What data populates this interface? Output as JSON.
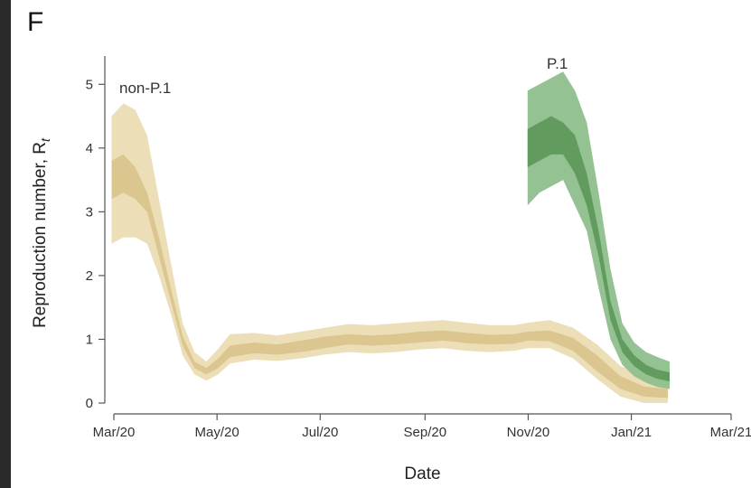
{
  "panel_letter": "F",
  "chart_data": {
    "type": "area",
    "title": "",
    "xlabel": "Date",
    "ylabel": "Reproduction number, R",
    "ylabel_sub": "t",
    "x_ticks": [
      "Mar/20",
      "May/20",
      "Jul/20",
      "Sep/20",
      "Nov/20",
      "Jan/21",
      "Mar/21"
    ],
    "ylim": [
      0,
      5.5
    ],
    "y_ticks": [
      0,
      1,
      2,
      3,
      4,
      5
    ],
    "series_labels": {
      "non_p1": "non-P.1",
      "p1": "P.1"
    },
    "colors": {
      "non_p1_outer": "#ebdcb2",
      "non_p1_inner": "#d9c48c",
      "p1_outer": "#8fbf8c",
      "p1_inner": "#5e9a5c",
      "axis": "#555555"
    },
    "series": [
      {
        "name": "non-P.1",
        "x": [
          "2020-03-05",
          "2020-03-12",
          "2020-03-19",
          "2020-03-26",
          "2020-04-02",
          "2020-04-09",
          "2020-04-16",
          "2020-04-23",
          "2020-04-30",
          "2020-05-07",
          "2020-05-14",
          "2020-05-28",
          "2020-06-11",
          "2020-06-25",
          "2020-07-09",
          "2020-07-23",
          "2020-08-06",
          "2020-08-20",
          "2020-09-03",
          "2020-09-17",
          "2020-10-01",
          "2020-10-15",
          "2020-10-29",
          "2020-11-06",
          "2020-11-19",
          "2020-12-03",
          "2020-12-17",
          "2020-12-31",
          "2021-01-14",
          "2021-01-28"
        ],
        "inner_lower": [
          3.2,
          3.3,
          3.2,
          3.0,
          2.3,
          1.6,
          0.9,
          0.55,
          0.45,
          0.55,
          0.72,
          0.78,
          0.76,
          0.8,
          0.86,
          0.92,
          0.9,
          0.92,
          0.95,
          0.98,
          0.94,
          0.92,
          0.93,
          0.98,
          0.97,
          0.82,
          0.5,
          0.22,
          0.1,
          0.08
        ],
        "inner_upper": [
          3.8,
          3.9,
          3.7,
          3.3,
          2.6,
          1.8,
          1.05,
          0.65,
          0.55,
          0.7,
          0.9,
          0.95,
          0.92,
          0.98,
          1.04,
          1.08,
          1.06,
          1.08,
          1.12,
          1.14,
          1.1,
          1.07,
          1.08,
          1.12,
          1.14,
          1.02,
          0.75,
          0.42,
          0.26,
          0.22
        ],
        "outer_lower": [
          2.5,
          2.6,
          2.6,
          2.5,
          2.0,
          1.4,
          0.75,
          0.45,
          0.35,
          0.45,
          0.62,
          0.68,
          0.66,
          0.7,
          0.76,
          0.8,
          0.78,
          0.8,
          0.84,
          0.86,
          0.82,
          0.8,
          0.82,
          0.86,
          0.86,
          0.7,
          0.38,
          0.1,
          0.0,
          0.0
        ],
        "outer_upper": [
          4.5,
          4.7,
          4.6,
          4.2,
          3.2,
          2.2,
          1.25,
          0.8,
          0.65,
          0.85,
          1.08,
          1.1,
          1.06,
          1.12,
          1.18,
          1.24,
          1.22,
          1.25,
          1.28,
          1.3,
          1.26,
          1.22,
          1.22,
          1.26,
          1.3,
          1.18,
          0.92,
          0.58,
          0.42,
          0.38
        ]
      },
      {
        "name": "P.1",
        "x": [
          "2020-11-06",
          "2020-11-13",
          "2020-11-20",
          "2020-11-27",
          "2020-12-04",
          "2020-12-11",
          "2020-12-18",
          "2020-12-25",
          "2021-01-01",
          "2021-01-08",
          "2021-01-15",
          "2021-01-22",
          "2021-01-29"
        ],
        "inner_lower": [
          3.7,
          3.8,
          3.9,
          3.9,
          3.6,
          3.1,
          2.3,
          1.3,
          0.8,
          0.58,
          0.45,
          0.38,
          0.34
        ],
        "inner_upper": [
          4.3,
          4.4,
          4.5,
          4.4,
          4.2,
          3.6,
          2.7,
          1.6,
          1.0,
          0.75,
          0.6,
          0.52,
          0.48
        ],
        "outer_lower": [
          3.1,
          3.3,
          3.4,
          3.5,
          3.1,
          2.7,
          1.8,
          1.0,
          0.6,
          0.42,
          0.32,
          0.25,
          0.22
        ],
        "outer_upper": [
          4.9,
          5.0,
          5.1,
          5.2,
          4.9,
          4.4,
          3.3,
          2.1,
          1.25,
          0.95,
          0.8,
          0.72,
          0.65
        ]
      }
    ]
  }
}
